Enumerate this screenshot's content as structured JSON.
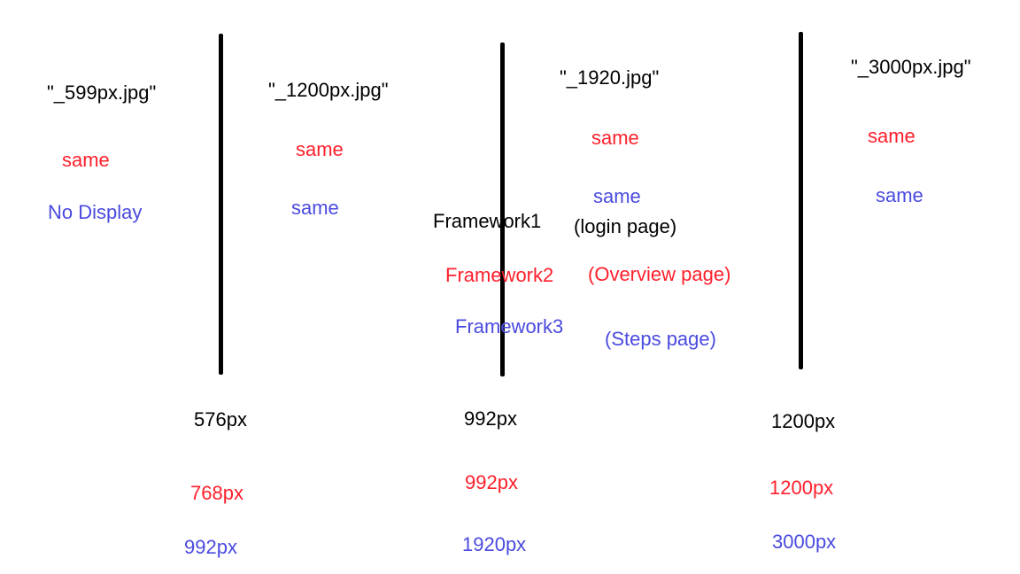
{
  "colors": {
    "black": "#000000",
    "red": "#ff1f2b",
    "blue": "#4a4adf"
  },
  "columns": [
    {
      "filename": "\"_599px.jpg\"",
      "red_text": "same",
      "blue_text": "No Display"
    },
    {
      "filename": "\"_1200px.jpg\"",
      "red_text": "same",
      "blue_text": "same"
    },
    {
      "filename": "\"_1920.jpg\"",
      "red_text": "same",
      "blue_text": "same"
    },
    {
      "filename": "\"_3000px.jpg\"",
      "red_text": "same",
      "blue_text": "same"
    }
  ],
  "frameworks": [
    {
      "name": "Framework1",
      "page": "(login page)",
      "color": "black"
    },
    {
      "name": "Framework2",
      "page": "(Overview page)",
      "color": "red"
    },
    {
      "name": "Framework3",
      "page": "(Steps page)",
      "color": "blue"
    }
  ],
  "breakpoints": [
    {
      "black": "576px",
      "red": "768px",
      "blue": "992px"
    },
    {
      "black": "992px",
      "red": "992px",
      "blue": "1920px"
    },
    {
      "black": "1200px",
      "red": "1200px",
      "blue": "3000px"
    }
  ]
}
